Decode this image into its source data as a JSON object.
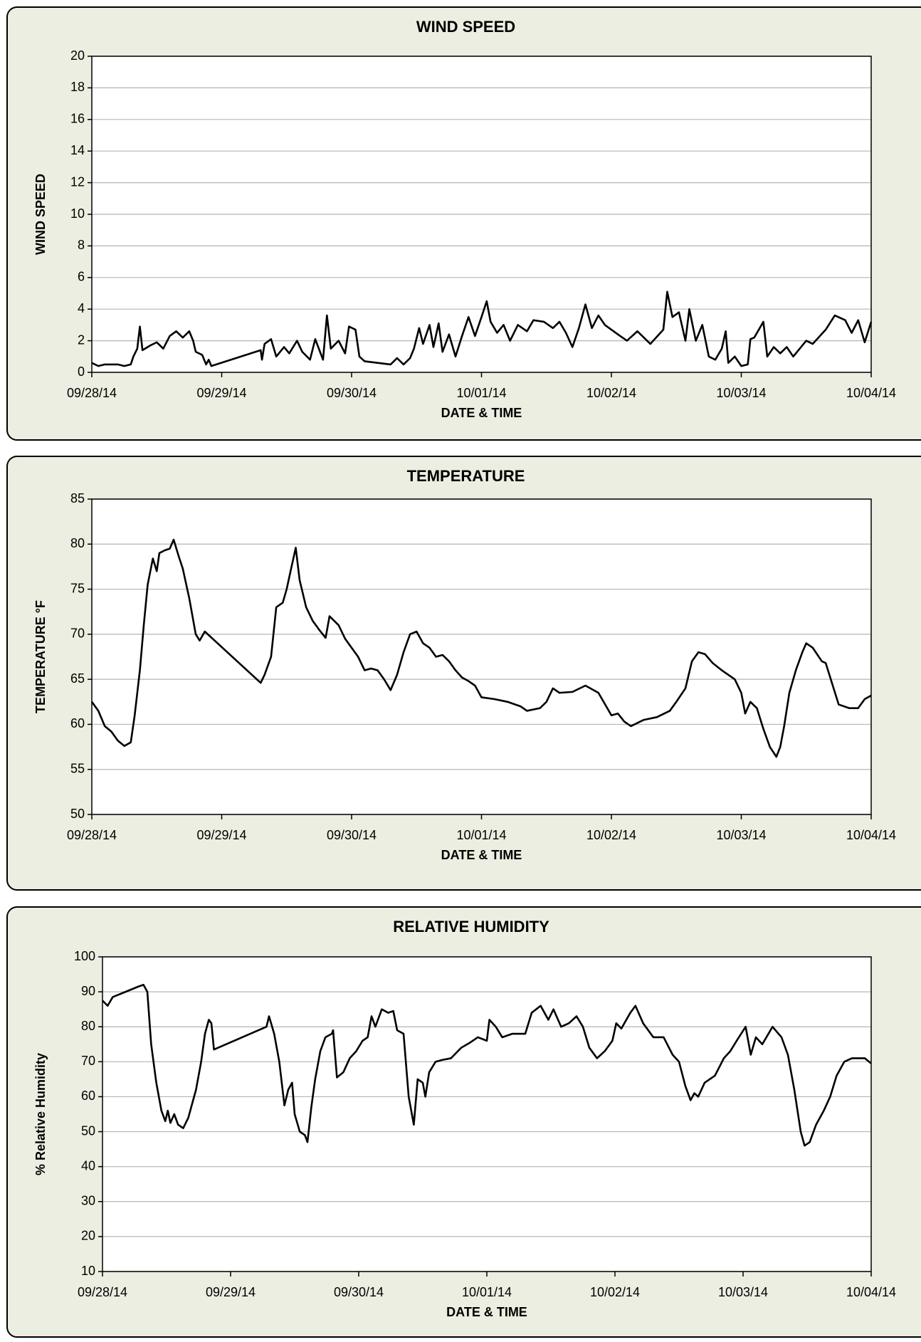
{
  "chart_data": [
    {
      "type": "line",
      "title": "WIND SPEED",
      "x_label": "DATE & TIME",
      "y_label": "WIND SPEED",
      "color": "#000000",
      "grid": true,
      "xlim": [
        0,
        6
      ],
      "ylim": [
        0,
        20
      ],
      "xticks": [
        {
          "value": 0,
          "label": "09/28/14"
        },
        {
          "value": 1,
          "label": "09/29/14"
        },
        {
          "value": 2,
          "label": "09/30/14"
        },
        {
          "value": 3,
          "label": "10/01/14"
        },
        {
          "value": 4,
          "label": "10/02/14"
        },
        {
          "value": 5,
          "label": "10/03/14"
        },
        {
          "value": 6,
          "label": "10/04/14"
        }
      ],
      "yticks": [
        0,
        2,
        4,
        6,
        8,
        10,
        12,
        14,
        16,
        18,
        20
      ],
      "x": [
        0,
        0.05,
        0.1,
        0.2,
        0.25,
        0.3,
        0.32,
        0.35,
        0.37,
        0.39,
        0.45,
        0.5,
        0.55,
        0.6,
        0.65,
        0.7,
        0.75,
        0.78,
        0.8,
        0.85,
        0.88,
        0.9,
        0.92,
        1.3,
        1.31,
        1.33,
        1.38,
        1.42,
        1.48,
        1.52,
        1.58,
        1.62,
        1.68,
        1.72,
        1.78,
        1.81,
        1.84,
        1.9,
        1.95,
        1.98,
        2.03,
        2.06,
        2.1,
        2.2,
        2.3,
        2.35,
        2.4,
        2.45,
        2.48,
        2.52,
        2.55,
        2.6,
        2.63,
        2.67,
        2.7,
        2.75,
        2.8,
        2.85,
        2.9,
        2.95,
        3.0,
        3.04,
        3.07,
        3.12,
        3.17,
        3.22,
        3.28,
        3.35,
        3.4,
        3.48,
        3.55,
        3.6,
        3.65,
        3.7,
        3.75,
        3.8,
        3.85,
        3.9,
        3.95,
        4.05,
        4.12,
        4.2,
        4.3,
        4.4,
        4.43,
        4.47,
        4.52,
        4.57,
        4.6,
        4.65,
        4.7,
        4.75,
        4.8,
        4.85,
        4.88,
        4.9,
        4.95,
        5.0,
        5.05,
        5.07,
        5.1,
        5.17,
        5.2,
        5.25,
        5.3,
        5.35,
        5.4,
        5.5,
        5.55,
        5.65,
        5.72,
        5.8,
        5.85,
        5.9,
        5.95,
        6.0
      ],
      "values": [
        0.6,
        0.4,
        0.5,
        0.5,
        0.4,
        0.5,
        1.0,
        1.5,
        2.9,
        1.4,
        1.7,
        1.9,
        1.5,
        2.3,
        2.6,
        2.2,
        2.6,
        2.0,
        1.3,
        1.1,
        0.5,
        0.8,
        0.4,
        1.4,
        0.8,
        1.8,
        2.1,
        1.0,
        1.6,
        1.2,
        2.0,
        1.3,
        0.8,
        2.1,
        0.8,
        3.6,
        1.5,
        2.0,
        1.2,
        2.9,
        2.7,
        1.0,
        0.7,
        0.6,
        0.5,
        0.9,
        0.5,
        0.9,
        1.5,
        2.8,
        1.8,
        3.0,
        1.6,
        3.1,
        1.3,
        2.4,
        1.0,
        2.3,
        3.5,
        2.3,
        3.5,
        4.5,
        3.2,
        2.5,
        3.0,
        2.0,
        3.0,
        2.6,
        3.3,
        3.2,
        2.8,
        3.2,
        2.5,
        1.6,
        2.8,
        4.3,
        2.8,
        3.6,
        3.0,
        2.4,
        2.0,
        2.6,
        1.8,
        2.7,
        5.1,
        3.5,
        3.8,
        2.0,
        4.0,
        2.0,
        3.0,
        1.0,
        0.8,
        1.5,
        2.6,
        0.6,
        1.0,
        0.4,
        0.5,
        2.1,
        2.2,
        3.2,
        1.0,
        1.6,
        1.2,
        1.6,
        1.0,
        2.0,
        1.8,
        2.7,
        3.6,
        3.3,
        2.5,
        3.3,
        1.9,
        3.2
      ]
    },
    {
      "type": "line",
      "title": "TEMPERATURE",
      "x_label": "DATE & TIME",
      "y_label": "TEMPERATURE °F",
      "color": "#000000",
      "grid": true,
      "xlim": [
        0,
        6
      ],
      "ylim": [
        50,
        85
      ],
      "xticks": [
        {
          "value": 0,
          "label": "09/28/14"
        },
        {
          "value": 1,
          "label": "09/29/14"
        },
        {
          "value": 2,
          "label": "09/30/14"
        },
        {
          "value": 3,
          "label": "10/01/14"
        },
        {
          "value": 4,
          "label": "10/02/14"
        },
        {
          "value": 5,
          "label": "10/03/14"
        },
        {
          "value": 6,
          "label": "10/04/14"
        }
      ],
      "yticks": [
        50,
        55,
        60,
        65,
        70,
        75,
        80,
        85
      ],
      "x": [
        0,
        0.05,
        0.1,
        0.15,
        0.2,
        0.25,
        0.3,
        0.33,
        0.37,
        0.4,
        0.43,
        0.47,
        0.5,
        0.52,
        0.56,
        0.6,
        0.63,
        0.67,
        0.7,
        0.75,
        0.8,
        0.83,
        0.87,
        1.3,
        1.33,
        1.38,
        1.42,
        1.47,
        1.5,
        1.53,
        1.57,
        1.6,
        1.65,
        1.7,
        1.75,
        1.8,
        1.83,
        1.9,
        1.95,
        2.0,
        2.05,
        2.1,
        2.15,
        2.2,
        2.25,
        2.3,
        2.35,
        2.4,
        2.45,
        2.5,
        2.55,
        2.6,
        2.65,
        2.7,
        2.75,
        2.8,
        2.85,
        2.9,
        2.95,
        3.0,
        3.1,
        3.2,
        3.3,
        3.35,
        3.45,
        3.5,
        3.55,
        3.6,
        3.7,
        3.8,
        3.9,
        4.0,
        4.05,
        4.1,
        4.15,
        4.25,
        4.35,
        4.45,
        4.5,
        4.57,
        4.62,
        4.67,
        4.72,
        4.78,
        4.85,
        4.95,
        5.0,
        5.03,
        5.07,
        5.12,
        5.17,
        5.22,
        5.27,
        5.3,
        5.33,
        5.37,
        5.42,
        5.47,
        5.5,
        5.55,
        5.62,
        5.65,
        5.7,
        5.75,
        5.83,
        5.9,
        5.95,
        6.0
      ],
      "values": [
        62.5,
        61.5,
        59.8,
        59.2,
        58.2,
        57.6,
        58,
        61,
        66,
        71,
        75.5,
        78.4,
        77,
        79,
        79.3,
        79.5,
        80.5,
        78.6,
        77.3,
        74,
        70,
        69.3,
        70.3,
        64.6,
        65.5,
        67.5,
        73,
        73.5,
        75,
        77,
        79.6,
        76,
        73,
        71.5,
        70.5,
        69.6,
        72,
        71,
        69.5,
        68.5,
        67.5,
        66,
        66.2,
        66,
        65,
        63.8,
        65.5,
        68,
        70,
        70.3,
        69,
        68.5,
        67.5,
        67.7,
        67,
        66,
        65.2,
        64.8,
        64.3,
        63,
        62.8,
        62.5,
        62,
        61.5,
        61.8,
        62.5,
        64,
        63.5,
        63.6,
        64.3,
        63.5,
        61,
        61.2,
        60.3,
        59.8,
        60.5,
        60.8,
        61.5,
        62.5,
        64,
        67,
        68,
        67.8,
        66.8,
        66,
        65,
        63.5,
        61.2,
        62.5,
        61.8,
        59.5,
        57.5,
        56.4,
        57.5,
        59.8,
        63.5,
        66,
        68,
        69,
        68.5,
        67,
        66.8,
        64.5,
        62.2,
        61.8,
        61.8,
        62.8,
        63.2
      ]
    },
    {
      "type": "line",
      "title": "RELATIVE HUMIDITY",
      "x_label": "DATE & TIME",
      "y_label": "% Relative Humidity",
      "color": "#000000",
      "grid": true,
      "xlim": [
        0,
        6
      ],
      "ylim": [
        10,
        100
      ],
      "xticks": [
        {
          "value": 0,
          "label": "09/28/14"
        },
        {
          "value": 1,
          "label": "09/29/14"
        },
        {
          "value": 2,
          "label": "09/30/14"
        },
        {
          "value": 3,
          "label": "10/01/14"
        },
        {
          "value": 4,
          "label": "10/02/14"
        },
        {
          "value": 5,
          "label": "10/03/14"
        },
        {
          "value": 6,
          "label": "10/04/14"
        }
      ],
      "yticks": [
        10,
        20,
        30,
        40,
        50,
        60,
        70,
        80,
        90,
        100
      ],
      "x": [
        0,
        0.04,
        0.08,
        0.18,
        0.28,
        0.32,
        0.35,
        0.38,
        0.42,
        0.46,
        0.49,
        0.51,
        0.53,
        0.56,
        0.59,
        0.63,
        0.67,
        0.7,
        0.73,
        0.77,
        0.8,
        0.83,
        0.85,
        0.87,
        1.28,
        1.3,
        1.34,
        1.38,
        1.42,
        1.45,
        1.48,
        1.5,
        1.54,
        1.58,
        1.6,
        1.63,
        1.66,
        1.7,
        1.74,
        1.79,
        1.8,
        1.83,
        1.88,
        1.93,
        1.98,
        2.03,
        2.07,
        2.1,
        2.13,
        2.18,
        2.23,
        2.27,
        2.3,
        2.35,
        2.39,
        2.43,
        2.46,
        2.5,
        2.52,
        2.55,
        2.6,
        2.65,
        2.72,
        2.8,
        2.87,
        2.93,
        3.0,
        3.02,
        3.07,
        3.12,
        3.2,
        3.3,
        3.35,
        3.42,
        3.48,
        3.52,
        3.58,
        3.64,
        3.7,
        3.75,
        3.8,
        3.86,
        3.92,
        3.98,
        4.01,
        4.05,
        4.12,
        4.16,
        4.22,
        4.3,
        4.38,
        4.45,
        4.5,
        4.55,
        4.59,
        4.62,
        4.65,
        4.7,
        4.78,
        4.85,
        4.9,
        4.95,
        5.02,
        5.06,
        5.1,
        5.15,
        5.23,
        5.3,
        5.35,
        5.4,
        5.45,
        5.48,
        5.52,
        5.57,
        5.63,
        5.68,
        5.73,
        5.79,
        5.85,
        5.9,
        5.95,
        6.0
      ],
      "values": [
        87.5,
        86,
        88.5,
        90,
        91.5,
        92,
        90,
        75,
        64,
        56,
        53,
        56,
        52.5,
        55,
        52,
        51,
        54,
        58,
        62,
        70,
        78,
        82,
        81,
        73.5,
        80,
        83,
        78,
        70,
        57.5,
        62,
        64,
        55,
        50,
        49,
        47,
        57,
        65,
        73,
        77,
        78,
        79,
        65.5,
        67,
        71,
        73,
        76,
        77,
        83,
        80,
        85,
        84,
        84.5,
        79,
        78,
        60,
        52,
        65,
        64,
        60,
        67,
        70,
        70.5,
        71,
        74,
        75.5,
        77,
        76,
        82,
        80,
        77,
        78,
        78,
        84,
        86,
        82,
        85,
        80,
        81,
        83,
        80,
        74,
        71,
        73,
        76,
        81,
        79.5,
        84,
        86,
        81,
        77,
        77,
        72,
        70,
        63,
        59,
        61,
        60,
        64,
        66,
        71,
        73,
        76,
        80,
        72,
        77,
        75,
        80,
        77,
        72,
        62,
        50,
        46,
        47,
        52,
        56,
        60,
        66,
        70,
        71,
        71,
        71,
        69.5
      ]
    }
  ]
}
